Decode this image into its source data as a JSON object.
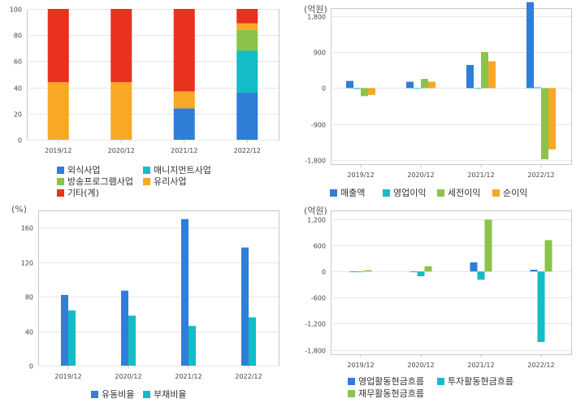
{
  "chart_data": [
    {
      "type": "bar",
      "stacked": true,
      "categories": [
        "2019/12",
        "2020/12",
        "2021/12",
        "2022/12"
      ],
      "ylim": [
        0,
        100
      ],
      "yticks": [
        "0",
        "20",
        "40",
        "60",
        "80",
        "100"
      ],
      "ytick_values": [
        0,
        20,
        40,
        60,
        80,
        100
      ],
      "series": [
        {
          "name": "외식사업",
          "color": "#2f7ed8",
          "values": [
            0,
            0,
            24,
            36
          ]
        },
        {
          "name": "매니지먼트사업",
          "color": "#13bcc7",
          "values": [
            0,
            0,
            0,
            32
          ]
        },
        {
          "name": "방송프로그램사업",
          "color": "#8bc34a",
          "values": [
            0,
            0,
            0,
            16
          ]
        },
        {
          "name": "유리사업",
          "color": "#f7a825",
          "values": [
            44,
            44,
            13,
            5
          ]
        },
        {
          "name": "기타(계)",
          "color": "#e8311e",
          "values": [
            56,
            56,
            63,
            11
          ]
        }
      ],
      "legend_position": "bottom"
    },
    {
      "type": "bar",
      "unit": "(억원)",
      "categories": [
        "2019/12",
        "2020/12",
        "2021/12",
        "2022/12"
      ],
      "ylim": [
        -1900,
        2000
      ],
      "yticks": [
        "1,800",
        "900",
        "0",
        "-900",
        "-1,800"
      ],
      "ytick_values": [
        1800,
        900,
        0,
        -900,
        -1800
      ],
      "series": [
        {
          "name": "매출액",
          "color": "#2f7ed8",
          "values": [
            180,
            160,
            580,
            2150
          ]
        },
        {
          "name": "영업이익",
          "color": "#13bcc7",
          "values": [
            -20,
            0,
            -15,
            20
          ]
        },
        {
          "name": "세전이익",
          "color": "#8bc34a",
          "values": [
            -200,
            230,
            900,
            -1780
          ]
        },
        {
          "name": "순이익",
          "color": "#f7a825",
          "values": [
            -170,
            160,
            670,
            -1530
          ]
        }
      ],
      "legend_position": "bottom"
    },
    {
      "type": "bar",
      "unit": "(%)",
      "categories": [
        "2019/12",
        "2020/12",
        "2021/12",
        "2022/12"
      ],
      "ylim": [
        0,
        180
      ],
      "yticks": [
        "160",
        "120",
        "80",
        "40",
        "0"
      ],
      "ytick_values": [
        160,
        120,
        80,
        40,
        0
      ],
      "series": [
        {
          "name": "유동비율",
          "color": "#2f7ed8",
          "values": [
            82,
            87,
            170,
            137
          ]
        },
        {
          "name": "부채비율",
          "color": "#13bcc7",
          "values": [
            64,
            58,
            46,
            56
          ]
        }
      ],
      "legend_position": "bottom"
    },
    {
      "type": "bar",
      "unit": "(억원)",
      "categories": [
        "2019/12",
        "2020/12",
        "2021/12",
        "2022/12"
      ],
      "ylim": [
        -1900,
        1400
      ],
      "yticks": [
        "1,200",
        "600",
        "0",
        "-600",
        "-1,200",
        "-1,800"
      ],
      "ytick_values": [
        1200,
        600,
        0,
        -600,
        -1200,
        -1800
      ],
      "series": [
        {
          "name": "영업활동현금흐름",
          "color": "#2f7ed8",
          "values": [
            -10,
            0,
            210,
            40
          ]
        },
        {
          "name": "투자활동현금흐름",
          "color": "#13bcc7",
          "values": [
            -10,
            -110,
            -190,
            -1620
          ]
        },
        {
          "name": "재무활동현금흐름",
          "color": "#8bc34a",
          "values": [
            30,
            120,
            1190,
            720
          ]
        }
      ],
      "legend_position": "bottom"
    }
  ]
}
